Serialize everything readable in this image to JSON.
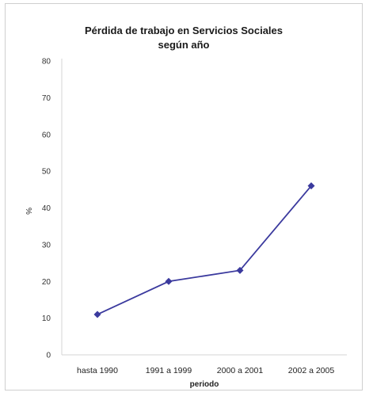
{
  "chart_data": {
    "type": "line",
    "title_lines": [
      "Pérdida de trabajo en Servicios Sociales",
      "según año"
    ],
    "xlabel": "periodo",
    "ylabel": "%",
    "categories": [
      "hasta 1990",
      "1991 a 1999",
      "2000 a 2001",
      "2002 a 2005"
    ],
    "series": [
      {
        "values": [
          11,
          20,
          23,
          46
        ]
      }
    ],
    "ylim": [
      0,
      80
    ],
    "yticks": [
      0,
      10,
      20,
      30,
      40,
      50,
      60,
      70,
      80
    ],
    "line_color": "#3b3a9e",
    "grid": false,
    "legend": "none"
  }
}
